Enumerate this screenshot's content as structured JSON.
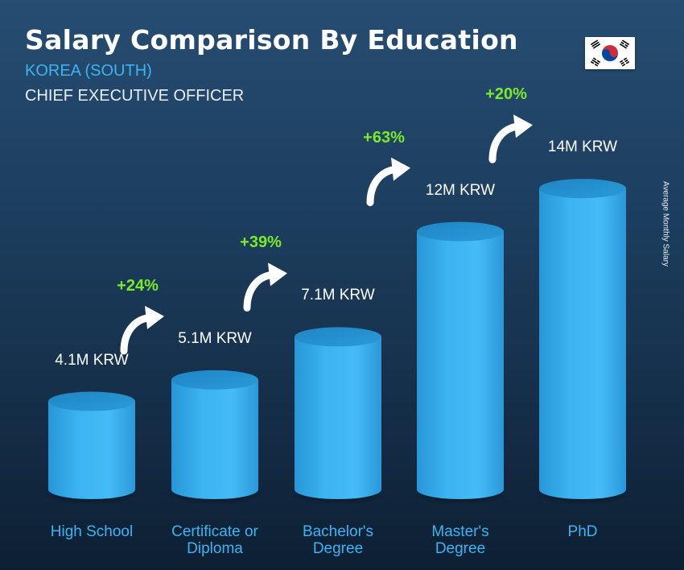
{
  "header": {
    "title": "Salary Comparison By Education",
    "country": "KOREA (SOUTH)",
    "job": "CHIEF EXECUTIVE OFFICER",
    "side_label": "Average Monthly Salary",
    "flag_icon": "south-korea-flag-icon"
  },
  "colors": {
    "bar": "#37aef0",
    "category": "#3db4f2",
    "increase": "#7bea28",
    "background": "#1d3f60"
  },
  "chart_data": {
    "type": "bar",
    "categories": [
      "High School",
      "Certificate or Diploma",
      "Bachelor's Degree",
      "Master's Degree",
      "PhD"
    ],
    "category_labels": [
      [
        "High School"
      ],
      [
        "Certificate or",
        "Diploma"
      ],
      [
        "Bachelor's",
        "Degree"
      ],
      [
        "Master's",
        "Degree"
      ],
      [
        "PhD"
      ]
    ],
    "values": [
      4.1,
      5.1,
      7.1,
      12,
      14
    ],
    "value_labels": [
      "4.1M KRW",
      "5.1M KRW",
      "7.1M KRW",
      "12M KRW",
      "14M KRW"
    ],
    "increases": [
      "+24%",
      "+39%",
      "+63%",
      "+20%"
    ],
    "unit": "M KRW",
    "ylabel": "Average Monthly Salary"
  }
}
